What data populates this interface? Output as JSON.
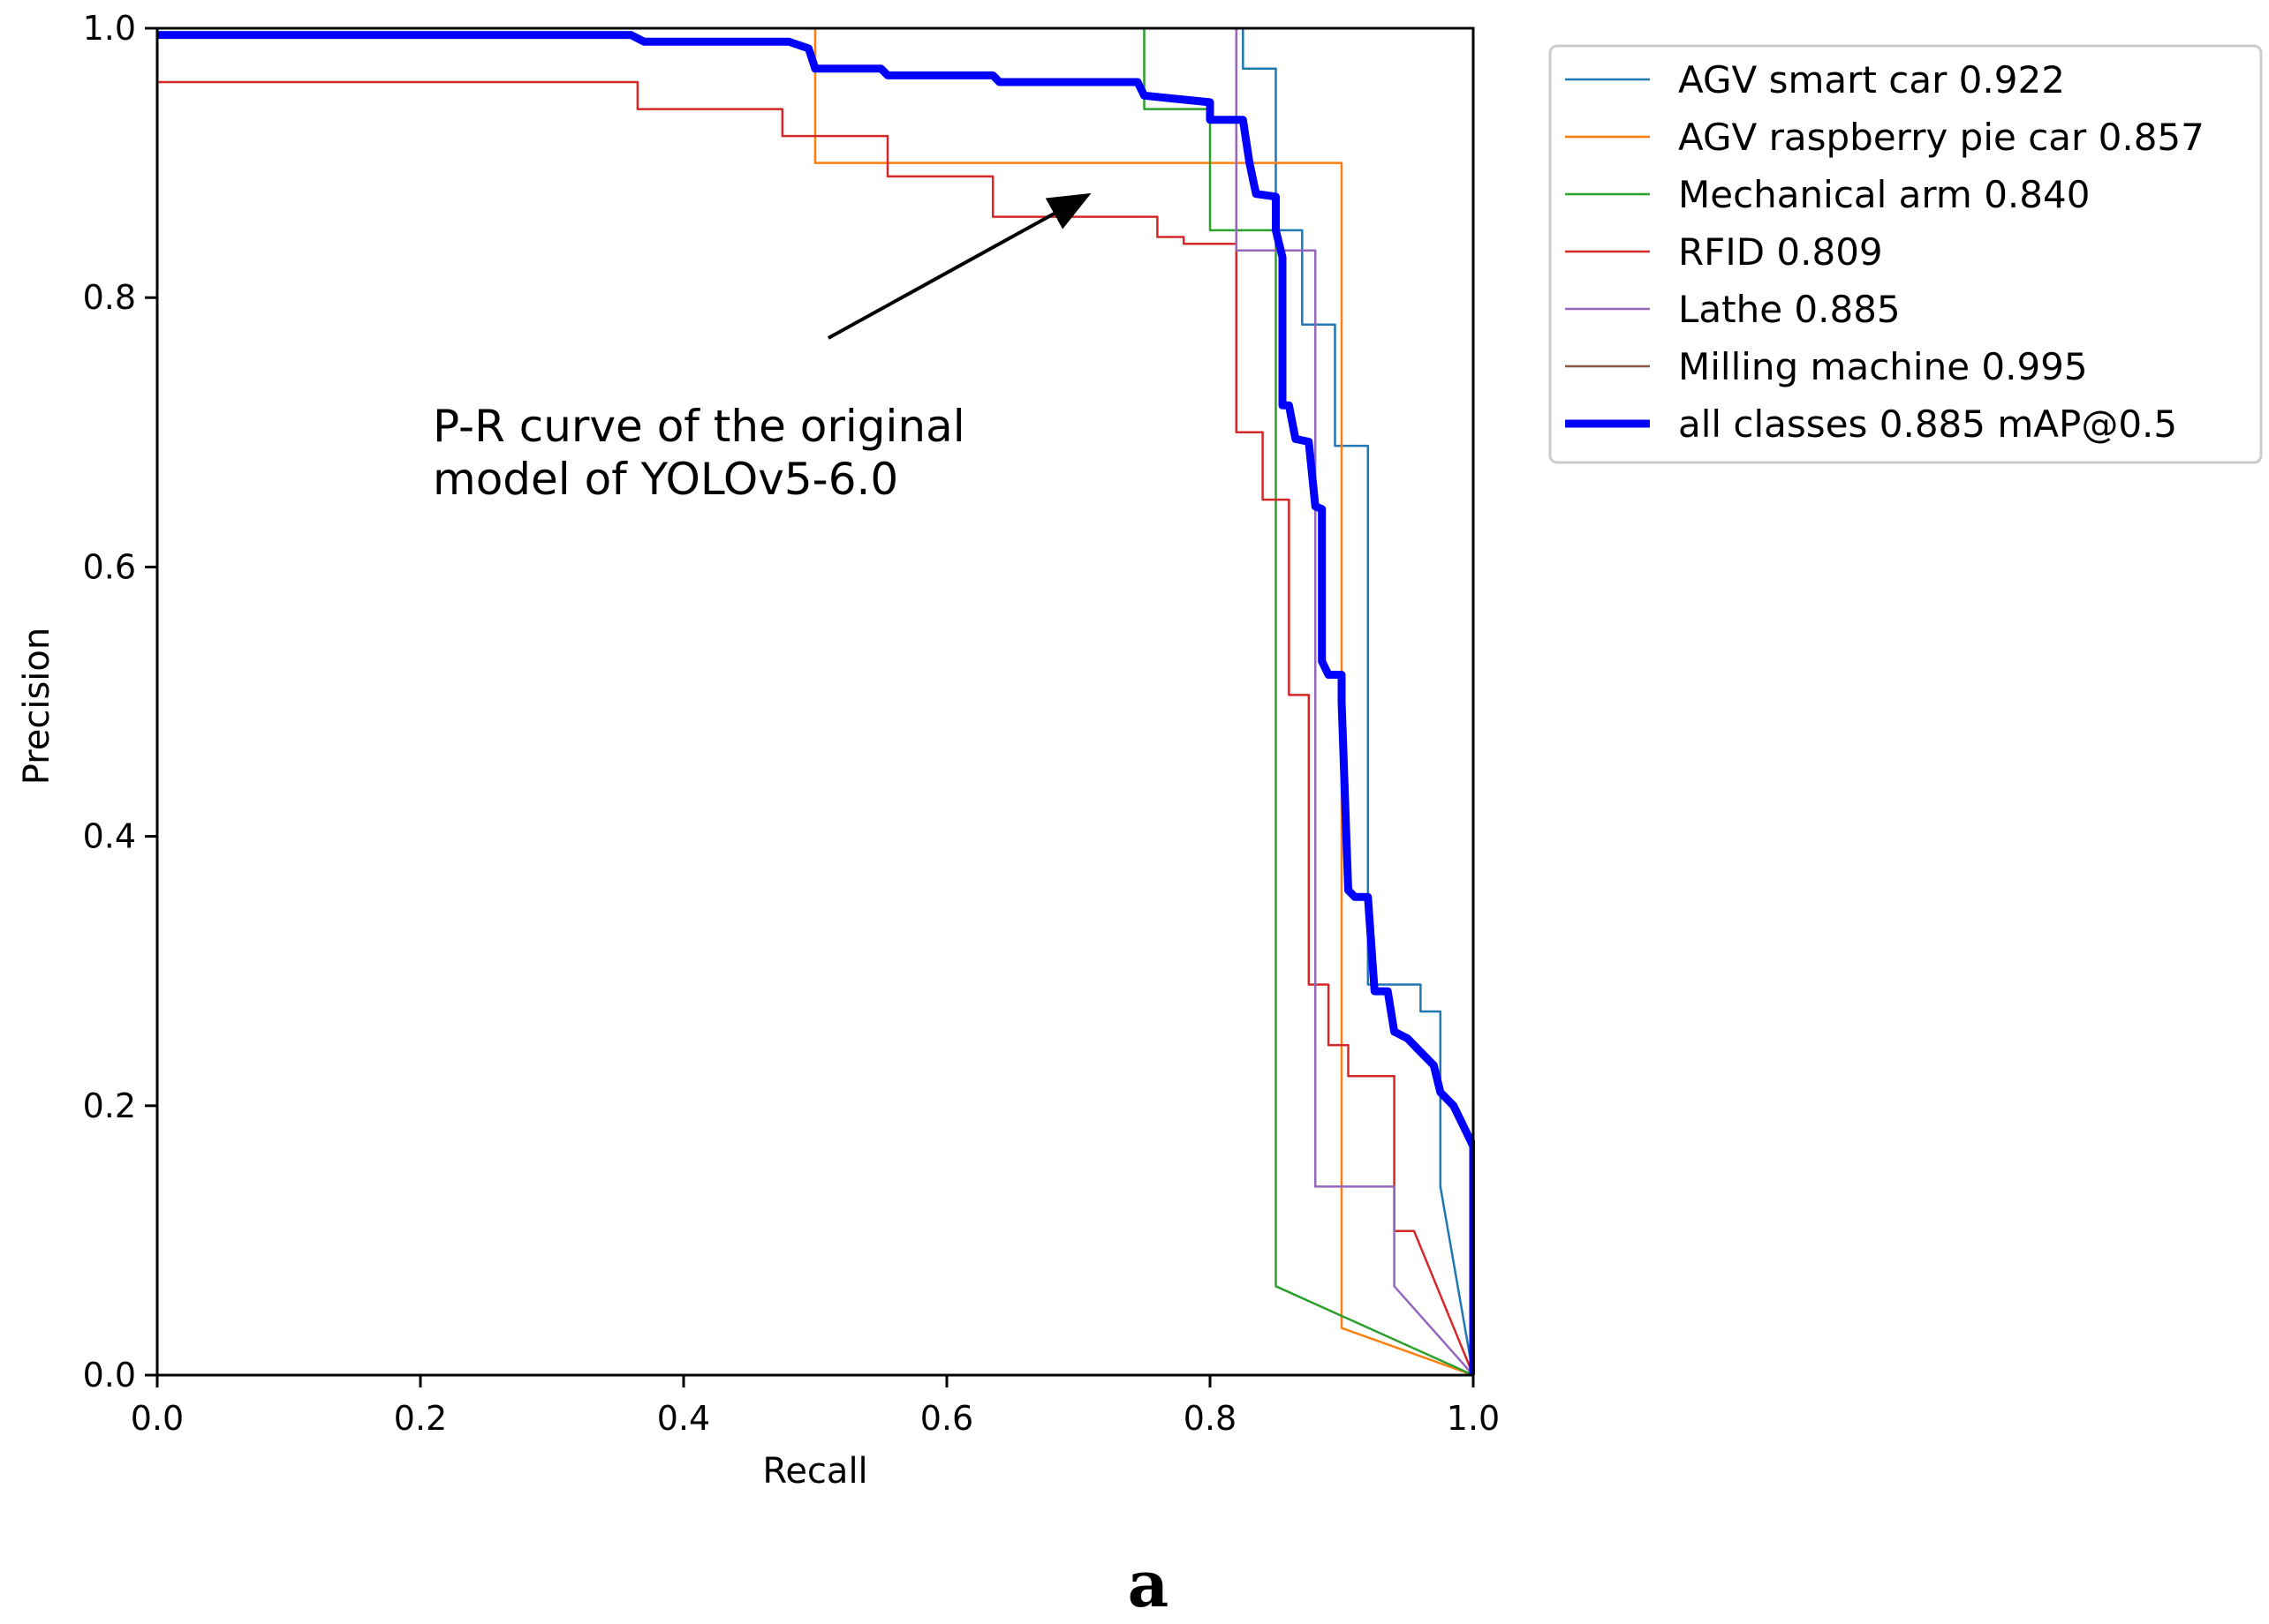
{
  "chart_data": {
    "type": "line",
    "title": "",
    "xlabel": "Recall",
    "ylabel": "Precision",
    "xlim": [
      0.0,
      1.0
    ],
    "ylim": [
      0.0,
      1.0
    ],
    "xticks": [
      "0.0",
      "0.2",
      "0.4",
      "0.6",
      "0.8",
      "1.0"
    ],
    "yticks": [
      "0.0",
      "0.2",
      "0.4",
      "0.6",
      "0.8",
      "1.0"
    ],
    "grid": false,
    "legend_position": "outside-top-right",
    "series": [
      {
        "name": "AGV smart car 0.922",
        "color": "#1f77b4",
        "width": 2.5,
        "points": [
          [
            0,
            1
          ],
          [
            0.825,
            1
          ],
          [
            0.825,
            0.97
          ],
          [
            0.85,
            0.97
          ],
          [
            0.85,
            0.85
          ],
          [
            0.87,
            0.85
          ],
          [
            0.87,
            0.78
          ],
          [
            0.895,
            0.78
          ],
          [
            0.895,
            0.69
          ],
          [
            0.92,
            0.69
          ],
          [
            0.92,
            0.29
          ],
          [
            0.96,
            0.29
          ],
          [
            0.96,
            0.27
          ],
          [
            0.975,
            0.27
          ],
          [
            0.975,
            0.14
          ],
          [
            1.0,
            0.0
          ]
        ]
      },
      {
        "name": "AGV raspberry pie car 0.857",
        "color": "#ff7f0e",
        "width": 2.5,
        "points": [
          [
            0,
            1
          ],
          [
            0.5,
            1
          ],
          [
            0.5,
            0.9
          ],
          [
            0.9,
            0.9
          ],
          [
            0.9,
            0.035
          ],
          [
            1.0,
            0.0
          ]
        ]
      },
      {
        "name": "Mechanical arm 0.840",
        "color": "#2ca02c",
        "width": 2.5,
        "points": [
          [
            0,
            1
          ],
          [
            0.75,
            1
          ],
          [
            0.75,
            0.94
          ],
          [
            0.8,
            0.94
          ],
          [
            0.8,
            0.85
          ],
          [
            0.85,
            0.85
          ],
          [
            0.85,
            0.066
          ],
          [
            1.0,
            0.0
          ]
        ]
      },
      {
        "name": "RFID 0.809",
        "color": "#d62728",
        "width": 2.5,
        "points": [
          [
            0,
            0.96
          ],
          [
            0.365,
            0.96
          ],
          [
            0.365,
            0.94
          ],
          [
            0.475,
            0.94
          ],
          [
            0.475,
            0.92
          ],
          [
            0.555,
            0.92
          ],
          [
            0.555,
            0.89
          ],
          [
            0.635,
            0.89
          ],
          [
            0.635,
            0.86
          ],
          [
            0.76,
            0.86
          ],
          [
            0.76,
            0.845
          ],
          [
            0.78,
            0.845
          ],
          [
            0.78,
            0.84
          ],
          [
            0.82,
            0.84
          ],
          [
            0.82,
            0.7
          ],
          [
            0.84,
            0.7
          ],
          [
            0.84,
            0.65
          ],
          [
            0.86,
            0.65
          ],
          [
            0.86,
            0.505
          ],
          [
            0.875,
            0.505
          ],
          [
            0.875,
            0.29
          ],
          [
            0.89,
            0.29
          ],
          [
            0.89,
            0.245
          ],
          [
            0.905,
            0.245
          ],
          [
            0.905,
            0.222
          ],
          [
            0.94,
            0.222
          ],
          [
            0.94,
            0.107
          ],
          [
            0.955,
            0.107
          ],
          [
            1.0,
            0.0
          ]
        ]
      },
      {
        "name": "Lathe 0.885",
        "color": "#9467bd",
        "width": 2.5,
        "points": [
          [
            0,
            1
          ],
          [
            0.82,
            1
          ],
          [
            0.82,
            0.835
          ],
          [
            0.88,
            0.835
          ],
          [
            0.88,
            0.14
          ],
          [
            0.94,
            0.14
          ],
          [
            0.94,
            0.066
          ],
          [
            1.0,
            0.0
          ]
        ]
      },
      {
        "name": "Milling machine 0.995",
        "color": "#8c564b",
        "width": 2.5,
        "points": [
          [
            0,
            1
          ],
          [
            1.0,
            1
          ],
          [
            1.0,
            0.0
          ]
        ]
      },
      {
        "name": "all classes 0.885 mAP@0.5",
        "color": "#0000ff",
        "width": 9,
        "points": [
          [
            0,
            0.995
          ],
          [
            0.36,
            0.995
          ],
          [
            0.37,
            0.99
          ],
          [
            0.48,
            0.99
          ],
          [
            0.495,
            0.985
          ],
          [
            0.5,
            0.97
          ],
          [
            0.55,
            0.97
          ],
          [
            0.555,
            0.965
          ],
          [
            0.635,
            0.965
          ],
          [
            0.64,
            0.96
          ],
          [
            0.745,
            0.96
          ],
          [
            0.75,
            0.95
          ],
          [
            0.77,
            0.948
          ],
          [
            0.8,
            0.945
          ],
          [
            0.8,
            0.932
          ],
          [
            0.825,
            0.932
          ],
          [
            0.83,
            0.9
          ],
          [
            0.835,
            0.877
          ],
          [
            0.85,
            0.875
          ],
          [
            0.85,
            0.85
          ],
          [
            0.855,
            0.83
          ],
          [
            0.855,
            0.72
          ],
          [
            0.86,
            0.72
          ],
          [
            0.865,
            0.695
          ],
          [
            0.875,
            0.693
          ],
          [
            0.88,
            0.645
          ],
          [
            0.885,
            0.643
          ],
          [
            0.885,
            0.53
          ],
          [
            0.89,
            0.52
          ],
          [
            0.9,
            0.52
          ],
          [
            0.9,
            0.5
          ],
          [
            0.905,
            0.36
          ],
          [
            0.91,
            0.355
          ],
          [
            0.92,
            0.355
          ],
          [
            0.925,
            0.285
          ],
          [
            0.935,
            0.285
          ],
          [
            0.94,
            0.255
          ],
          [
            0.95,
            0.25
          ],
          [
            0.96,
            0.24
          ],
          [
            0.97,
            0.23
          ],
          [
            0.975,
            0.21
          ],
          [
            0.985,
            0.2
          ],
          [
            1.0,
            0.17
          ],
          [
            1.0,
            0.0
          ]
        ]
      }
    ],
    "annotation": {
      "lines": [
        "P-R curve of the original",
        "model of YOLOv5-6.0"
      ],
      "arrow_from": [
        0.51,
        0.77
      ],
      "arrow_to": [
        0.705,
        0.875
      ]
    }
  },
  "panel_label": "a"
}
